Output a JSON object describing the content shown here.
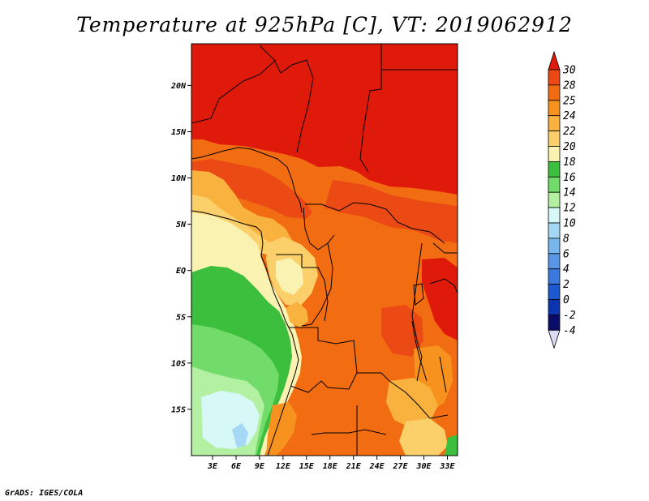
{
  "title": "Temperature at 925hPa [C], VT: 2019062912",
  "credit": "GrADS: IGES/COLA",
  "map": {
    "lat_labels": [
      "20N",
      "15N",
      "10N",
      "5N",
      "EQ",
      "5S",
      "10S",
      "15S"
    ],
    "lon_labels": [
      "3E",
      "6E",
      "9E",
      "12E",
      "15E",
      "18E",
      "21E",
      "24E",
      "27E",
      "30E",
      "33E"
    ],
    "lat_range": [
      -20,
      24.5
    ],
    "lon_range": [
      0.3,
      34.3
    ]
  },
  "colorbar": {
    "labels": [
      "30",
      "28",
      "25",
      "24",
      "22",
      "20",
      "18",
      "16",
      "14",
      "12",
      "10",
      "8",
      "6",
      "4",
      "2",
      "0",
      "-2",
      "-4"
    ],
    "colors": [
      "#e01a0a",
      "#ec4a14",
      "#f26d12",
      "#f7921e",
      "#fab23e",
      "#fbcf6a",
      "#faf2b0",
      "#3cbf3c",
      "#72dc6a",
      "#b4f0a2",
      "#d6f8f6",
      "#a6d8f6",
      "#7ab6ee",
      "#5a96e6",
      "#3a78de",
      "#1c58d0",
      "#0a34b0",
      "#0a0c6a",
      "#dcdcf6"
    ]
  }
}
